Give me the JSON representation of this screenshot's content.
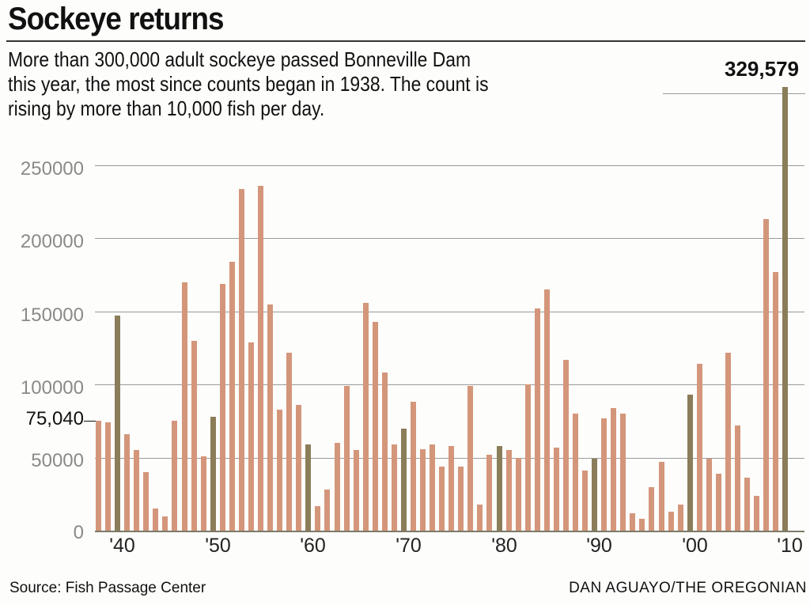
{
  "header": {
    "title": "Sockeye returns",
    "subtitle": "More than 300,000 adult sockeye passed Bonneville Dam this year, the most since counts began in 1938. The count is rising by more than 10,000 fish per day.",
    "subtitle_lines": [
      "More than 300,000 adult sockeye passed Bonneville Dam",
      "this year, the most since counts began in 1938. The count is",
      "rising by more than 10,000 fish per day."
    ]
  },
  "annotations": {
    "max_label": "329,579",
    "first_label": "75,040"
  },
  "footer": {
    "source": "Source: Fish Passage Center",
    "credit": "DAN AGUAYO/THE OREGONIAN"
  },
  "colors": {
    "bar": "#d4967a",
    "decade_bar": "#8b7d5a",
    "grid": "#9a9a9a"
  },
  "chart_data": {
    "type": "bar",
    "title": "Sockeye returns",
    "subtitle": "More than 300,000 adult sockeye passed Bonneville Dam this year, the most since counts began in 1938. The count is rising by more than 10,000 fish per day.",
    "xlabel": "",
    "ylabel": "",
    "ylim": [
      0,
      250000
    ],
    "yticks": [
      0,
      50000,
      100000,
      150000,
      200000,
      250000
    ],
    "ytick_labels": [
      "0",
      "50000",
      "100000",
      "150000",
      "200000",
      "250000"
    ],
    "xtick_labels": [
      "'40",
      "'50",
      "'60",
      "'70",
      "'80",
      "'90",
      "'00",
      "'10"
    ],
    "grid": true,
    "legend": null,
    "annotations": [
      {
        "x": 1938,
        "label": "75,040"
      },
      {
        "x": 2010,
        "label": "329,579"
      }
    ],
    "categories": [
      1938,
      1939,
      1940,
      1941,
      1942,
      1943,
      1944,
      1945,
      1946,
      1947,
      1948,
      1949,
      1950,
      1951,
      1952,
      1953,
      1954,
      1955,
      1956,
      1957,
      1958,
      1959,
      1960,
      1961,
      1962,
      1963,
      1964,
      1965,
      1966,
      1967,
      1968,
      1969,
      1970,
      1971,
      1972,
      1973,
      1974,
      1975,
      1976,
      1977,
      1978,
      1979,
      1980,
      1981,
      1982,
      1983,
      1984,
      1985,
      1986,
      1987,
      1988,
      1989,
      1990,
      1991,
      1992,
      1993,
      1994,
      1995,
      1996,
      1997,
      1998,
      1999,
      2000,
      2001,
      2002,
      2003,
      2004,
      2005,
      2006,
      2007,
      2008,
      2009,
      2010
    ],
    "values": [
      75040,
      74000,
      147000,
      66000,
      55000,
      40000,
      15000,
      10000,
      75000,
      170000,
      130000,
      51000,
      78000,
      169000,
      184000,
      234000,
      129000,
      236000,
      155000,
      83000,
      122000,
      86000,
      59000,
      17000,
      28000,
      60000,
      99000,
      55000,
      156000,
      143000,
      108000,
      59000,
      70000,
      88000,
      56000,
      59000,
      44000,
      58000,
      44000,
      99000,
      18000,
      52000,
      58000,
      55000,
      50000,
      100000,
      152000,
      165000,
      57000,
      117000,
      80000,
      41000,
      49000,
      77000,
      84000,
      80000,
      12000,
      8000,
      30000,
      47000,
      13000,
      18000,
      93000,
      114000,
      49000,
      39000,
      122000,
      72000,
      36000,
      24000,
      213000,
      177000,
      329579
    ],
    "decade_years_highlighted": [
      1940,
      1950,
      1960,
      1970,
      1980,
      1990,
      2000,
      2010
    ]
  },
  "axis": {
    "y_labels": [
      {
        "label": "250000",
        "top": 200
      },
      {
        "label": "200000",
        "top": 292
      },
      {
        "label": "150000",
        "top": 385
      },
      {
        "label": "100000",
        "top": 477
      },
      {
        "label": "50000",
        "top": 569
      },
      {
        "label": "0",
        "top": 660
      }
    ],
    "x_labels": [
      {
        "label": "'40",
        "year": 1940
      },
      {
        "label": "'50",
        "year": 1950
      },
      {
        "label": "'60",
        "year": 1960
      },
      {
        "label": "'70",
        "year": 1970
      },
      {
        "label": "'80",
        "year": 1980
      },
      {
        "label": "'90",
        "year": 1990
      },
      {
        "label": "'00",
        "year": 2000
      },
      {
        "label": "'10",
        "year": 2010
      }
    ]
  }
}
